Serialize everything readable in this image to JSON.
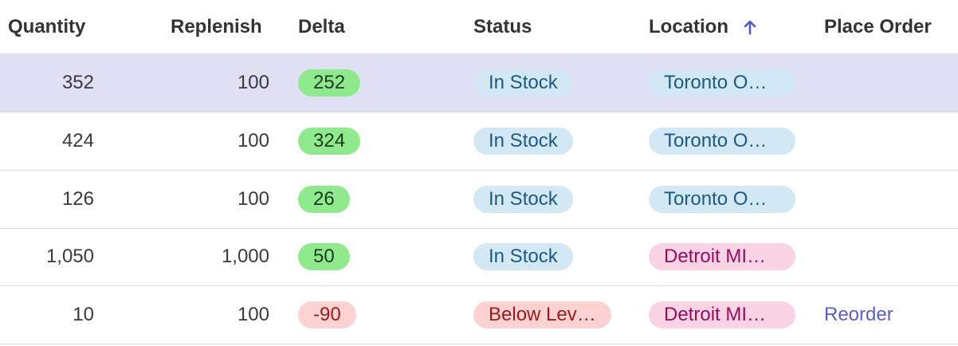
{
  "table": {
    "headers": [
      "Quantity",
      "Replenish",
      "Delta",
      "Status",
      "Location",
      "Place Order"
    ],
    "rows": [
      {
        "quantity": "352",
        "replenish": "100",
        "delta": "252",
        "status": "In Stock",
        "location": "Toronto O…"
      },
      {
        "quantity": "424",
        "replenish": "100",
        "delta": "324",
        "status": "In Stock",
        "location": "Toronto O…"
      },
      {
        "quantity": "126",
        "replenish": "100",
        "delta": "26",
        "status": "In Stock",
        "location": "Toronto O…"
      },
      {
        "quantity": "1,050",
        "replenish": "1,000",
        "delta": "50",
        "status": "In Stock",
        "location": "Detroit MI…"
      },
      {
        "quantity": "10",
        "replenish": "100",
        "delta": "-90",
        "status": "Below Lev…",
        "location": "Detroit MI…",
        "place_order": "Reorder"
      }
    ]
  }
}
